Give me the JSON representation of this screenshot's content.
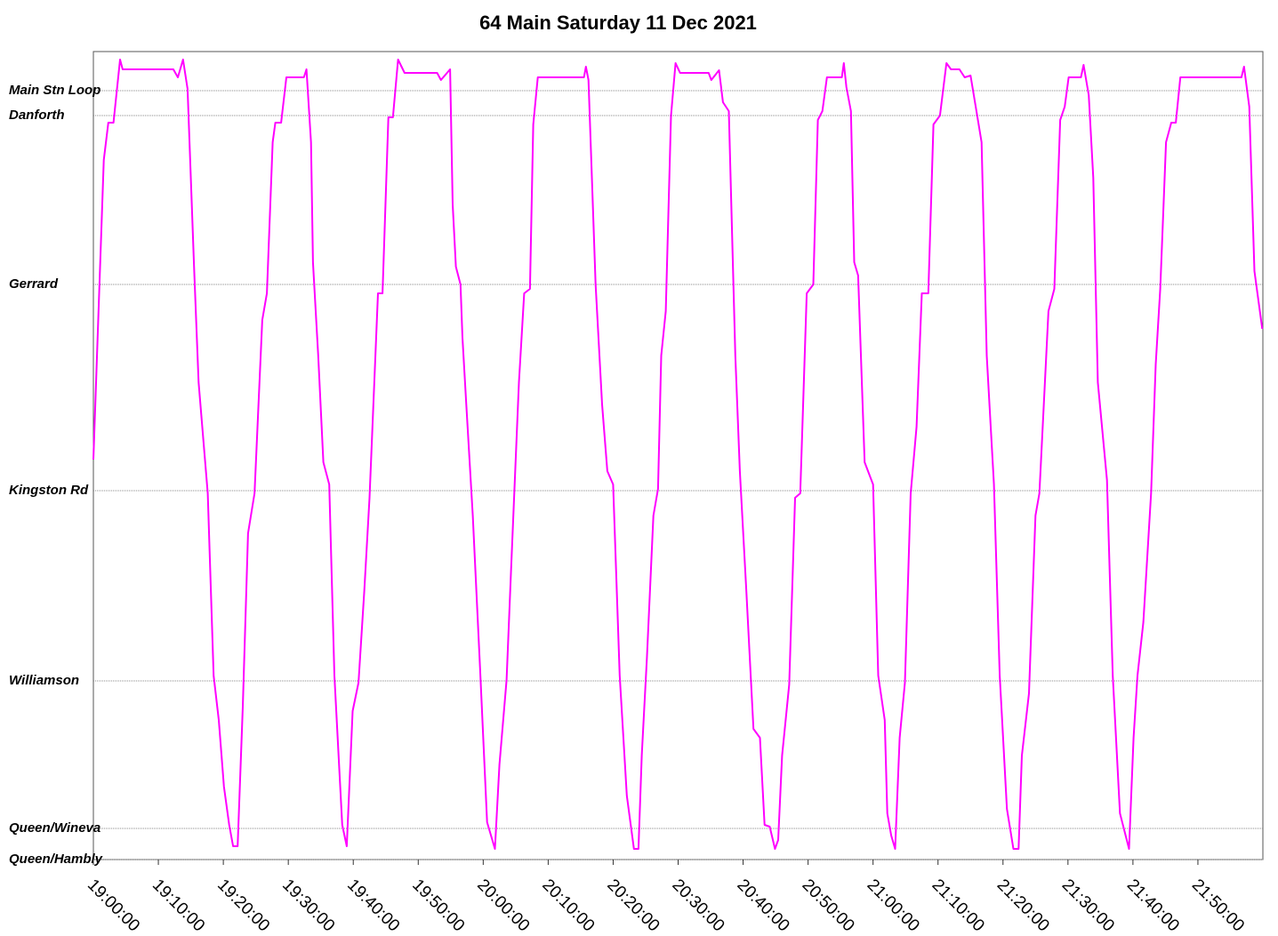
{
  "chart_data": {
    "type": "line",
    "title": "64 Main Saturday 11 Dec 2021",
    "xlim": [
      0,
      180
    ],
    "xticks": [
      {
        "value": 0,
        "label": "19:00:00"
      },
      {
        "value": 10,
        "label": "19:10:00"
      },
      {
        "value": 20,
        "label": "19:20:00"
      },
      {
        "value": 30,
        "label": "19:30:00"
      },
      {
        "value": 40,
        "label": "19:40:00"
      },
      {
        "value": 50,
        "label": "19:50:00"
      },
      {
        "value": 60,
        "label": "20:00:00"
      },
      {
        "value": 70,
        "label": "20:10:00"
      },
      {
        "value": 80,
        "label": "20:20:00"
      },
      {
        "value": 90,
        "label": "20:30:00"
      },
      {
        "value": 100,
        "label": "20:40:00"
      },
      {
        "value": 110,
        "label": "20:50:00"
      },
      {
        "value": 120,
        "label": "21:00:00"
      },
      {
        "value": 130,
        "label": "21:10:00"
      },
      {
        "value": 140,
        "label": "21:20:00"
      },
      {
        "value": 150,
        "label": "21:30:00"
      },
      {
        "value": 160,
        "label": "21:40:00"
      },
      {
        "value": 170,
        "label": "21:50:00"
      }
    ],
    "ylim": [
      0,
      9.09
    ],
    "yticks": [
      {
        "value": 0,
        "label": "Queen/Hambly"
      },
      {
        "value": 0.35,
        "label": "Queen/Wineva"
      },
      {
        "value": 2.01,
        "label": "Williamson"
      },
      {
        "value": 4.15,
        "label": "Kingston Rd"
      },
      {
        "value": 6.47,
        "label": "Gerrard"
      },
      {
        "value": 8.37,
        "label": "Danforth"
      },
      {
        "value": 8.65,
        "label": "Main Stn Loop"
      }
    ],
    "grid": true,
    "color": "#ff00ff",
    "x": [
      0,
      0.8,
      1.6,
      2.3,
      3.1,
      4.1,
      4.5,
      12.3,
      13.0,
      13.8,
      14.5,
      15.5,
      16.2,
      17.6,
      18.5,
      19.3,
      20.1,
      20.9,
      21.5,
      22.2,
      23.0,
      23.8,
      24.8,
      26.0,
      26.7,
      27.6,
      28.0,
      28.9,
      29.7,
      32.4,
      32.8,
      33.5,
      33.8,
      34.6,
      35.4,
      36.3,
      37.1,
      38.3,
      39.0,
      39.9,
      40.8,
      41.7,
      42.5,
      43.8,
      44.5,
      45.4,
      46.1,
      46.9,
      47.9,
      52.9,
      53.5,
      54.9,
      55.3,
      55.8,
      56.5,
      56.8,
      57.4,
      58.4,
      59.5,
      60.6,
      61.8,
      62.5,
      63.6,
      64.3,
      65.5,
      66.3,
      67.2,
      67.7,
      68.4,
      75.5,
      75.8,
      76.2,
      77.3,
      78.3,
      79.1,
      80.0,
      81.0,
      82.1,
      83.2,
      83.9,
      84.4,
      85.2,
      86.2,
      86.9,
      87.4,
      88.1,
      88.9,
      89.6,
      90.3,
      94.7,
      95.1,
      96.3,
      96.9,
      97.8,
      98.8,
      99.5,
      100.5,
      101.6,
      102.6,
      103.3,
      104.1,
      104.9,
      105.4,
      106.0,
      107.1,
      108.0,
      108.8,
      109.8,
      110.8,
      111.5,
      112.2,
      112.9,
      115.2,
      115.5,
      115.9,
      116.6,
      117.1,
      117.7,
      118.7,
      120.0,
      120.8,
      121.8,
      122.2,
      122.8,
      123.4,
      124.1,
      124.9,
      125.8,
      126.7,
      127.5,
      128.5,
      129.3,
      130.3,
      131.3,
      132.0,
      133.3,
      134.1,
      135.0,
      135.8,
      136.7,
      137.5,
      138.6,
      139.5,
      140.6,
      141.6,
      142.4,
      142.9,
      144.0,
      145.0,
      145.6,
      147.0,
      147.9,
      148.8,
      149.5,
      150.1,
      152.0,
      152.4,
      153.2,
      153.9,
      154.6,
      156.0,
      156.9,
      158.0,
      159.4,
      160.1,
      160.7,
      161.6,
      162.8,
      163.5,
      164.2,
      165.1,
      165.9,
      166.6,
      167.3,
      176.7,
      177.1,
      177.9,
      178.7,
      179.9
    ],
    "values": [
      4.5,
      6.17,
      7.87,
      8.29,
      8.29,
      9.0,
      8.89,
      8.89,
      8.8,
      9.0,
      8.67,
      6.67,
      5.37,
      4.12,
      2.07,
      1.57,
      0.82,
      0.39,
      0.15,
      0.15,
      1.72,
      3.67,
      4.12,
      6.07,
      6.37,
      8.07,
      8.29,
      8.29,
      8.8,
      8.8,
      8.89,
      8.07,
      6.72,
      5.67,
      4.47,
      4.22,
      2.07,
      0.39,
      0.15,
      1.67,
      1.99,
      3.02,
      4.07,
      6.37,
      6.37,
      8.35,
      8.35,
      9.0,
      8.85,
      8.85,
      8.77,
      8.89,
      7.37,
      6.67,
      6.47,
      5.87,
      5.12,
      3.87,
      2.17,
      0.42,
      0.12,
      1.07,
      2.02,
      3.27,
      5.37,
      6.37,
      6.42,
      8.27,
      8.8,
      8.8,
      8.92,
      8.77,
      6.47,
      5.12,
      4.37,
      4.22,
      2.07,
      0.72,
      0.12,
      0.12,
      1.17,
      2.27,
      3.87,
      4.17,
      5.67,
      6.17,
      8.37,
      8.96,
      8.85,
      8.85,
      8.77,
      8.88,
      8.52,
      8.42,
      5.67,
      4.37,
      3.02,
      1.47,
      1.37,
      0.39,
      0.37,
      0.12,
      0.22,
      1.17,
      1.97,
      4.07,
      4.12,
      6.37,
      6.47,
      8.32,
      8.42,
      8.8,
      8.8,
      8.96,
      8.69,
      8.42,
      6.72,
      6.57,
      4.47,
      4.22,
      2.07,
      1.57,
      0.52,
      0.27,
      0.12,
      1.37,
      1.99,
      4.12,
      4.87,
      6.37,
      6.37,
      8.27,
      8.37,
      8.96,
      8.89,
      8.89,
      8.8,
      8.82,
      8.47,
      8.07,
      5.67,
      4.22,
      2.07,
      0.57,
      0.12,
      0.12,
      1.17,
      1.87,
      3.87,
      4.12,
      6.17,
      6.42,
      8.32,
      8.47,
      8.8,
      8.8,
      8.94,
      8.6,
      7.67,
      5.37,
      4.27,
      2.07,
      0.52,
      0.12,
      1.37,
      2.07,
      2.67,
      4.12,
      5.57,
      6.42,
      8.07,
      8.29,
      8.29,
      8.8,
      8.8,
      8.92,
      8.47,
      6.62,
      5.97
    ]
  }
}
